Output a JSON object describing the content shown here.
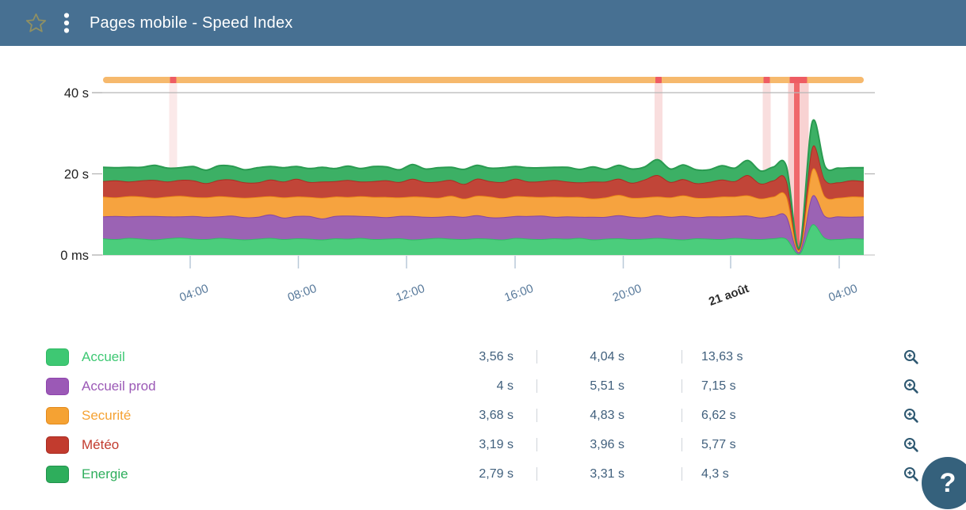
{
  "header": {
    "title": "Pages mobile - Speed Index"
  },
  "chart_data": {
    "type": "area",
    "stacked": true,
    "unit": "seconds",
    "ylim": [
      0,
      42
    ],
    "grid": "horizontal-40s-only",
    "y_ticks": [
      {
        "v": 0,
        "label": "0 ms"
      },
      {
        "v": 20,
        "label": "20 s"
      },
      {
        "v": 40,
        "label": "40 s"
      }
    ],
    "x_ticks": [
      {
        "pos": 0.1146,
        "label": "04:00"
      },
      {
        "pos": 0.2568,
        "label": "08:00"
      },
      {
        "pos": 0.399,
        "label": "12:00"
      },
      {
        "pos": 0.5417,
        "label": "16:00"
      },
      {
        "pos": 0.6839,
        "label": "20:00"
      },
      {
        "pos": 0.825,
        "label": "21 août",
        "emphasis": true
      },
      {
        "pos": 0.9677,
        "label": "04:00"
      }
    ],
    "series": [
      {
        "name": "Accueil",
        "fill": "#4bcd7c",
        "stroke": "#2fbd64",
        "values": [
          4.1,
          3.9,
          4.2,
          4.0,
          3.8,
          4.1,
          4.3,
          4.0,
          3.9,
          4.2,
          4.0,
          3.8,
          4.0,
          4.2,
          3.9,
          4.1,
          4.0,
          3.8,
          4.1,
          4.0,
          4.2,
          3.9,
          4.0,
          4.1,
          3.8,
          4.0,
          4.2,
          4.0,
          3.9,
          4.1,
          4.0,
          3.8,
          4.2,
          4.0,
          3.9,
          4.1,
          4.0,
          4.2,
          3.8,
          4.0,
          4.1,
          3.9,
          4.0,
          4.2,
          4.0,
          3.8,
          4.1,
          4.0,
          3.9,
          4.2,
          4.0,
          3.9,
          4.1,
          4.0,
          0.3,
          7.5,
          4.2,
          3.9,
          4.1,
          4.0
        ]
      },
      {
        "name": "Accueil prod",
        "fill": "#9b63b4",
        "stroke": "#8646a4",
        "values": [
          5.4,
          5.7,
          5.3,
          5.6,
          5.8,
          5.4,
          5.2,
          5.6,
          5.5,
          5.3,
          5.7,
          5.5,
          5.4,
          5.8,
          5.3,
          5.5,
          5.6,
          5.2,
          5.5,
          5.7,
          5.4,
          5.6,
          5.3,
          5.5,
          5.8,
          5.4,
          5.2,
          5.6,
          5.5,
          5.7,
          5.3,
          5.5,
          5.4,
          5.6,
          5.8,
          5.3,
          5.5,
          5.2,
          5.6,
          5.4,
          5.7,
          5.5,
          5.3,
          5.6,
          5.4,
          5.8,
          5.2,
          5.5,
          5.6,
          5.4,
          5.7,
          5.3,
          5.5,
          5.6,
          0.4,
          7.0,
          5.4,
          5.6,
          5.3,
          5.5
        ]
      },
      {
        "name": "Securité",
        "fill": "#f6a33f",
        "stroke": "#ee8d17",
        "values": [
          4.9,
          4.6,
          5.0,
          4.8,
          4.5,
          4.9,
          5.1,
          4.7,
          4.8,
          5.0,
          4.6,
          4.8,
          4.9,
          4.5,
          5.0,
          4.8,
          4.7,
          5.1,
          4.8,
          4.6,
          4.9,
          4.8,
          5.0,
          4.6,
          4.8,
          4.9,
          4.7,
          5.0,
          4.5,
          4.8,
          5.1,
          4.7,
          4.9,
          4.8,
          4.6,
          5.0,
          4.8,
          4.9,
          4.5,
          4.8,
          5.0,
          4.7,
          4.9,
          4.6,
          4.8,
          5.1,
          4.8,
          4.6,
          4.9,
          4.8,
          5.0,
          4.7,
          4.8,
          4.9,
          0.5,
          6.5,
          4.8,
          4.6,
          5.0,
          4.8
        ]
      },
      {
        "name": "Météo",
        "fill": "#c14538",
        "stroke": "#ab2d22",
        "values": [
          3.8,
          4.2,
          3.6,
          4.0,
          4.4,
          3.7,
          3.9,
          4.1,
          3.5,
          4.0,
          4.3,
          3.8,
          3.6,
          4.1,
          3.9,
          4.4,
          3.7,
          4.0,
          3.8,
          4.2,
          3.6,
          3.9,
          4.1,
          3.8,
          4.4,
          3.7,
          4.0,
          3.9,
          3.6,
          4.2,
          3.8,
          4.0,
          4.3,
          3.7,
          3.9,
          4.1,
          3.8,
          3.6,
          4.2,
          3.9,
          4.0,
          3.7,
          4.4,
          5.3,
          3.8,
          4.0,
          3.6,
          3.9,
          4.2,
          3.8,
          5.0,
          3.7,
          4.0,
          3.9,
          0.4,
          5.5,
          4.1,
          3.8,
          4.0,
          3.9
        ]
      },
      {
        "name": "Energie",
        "fill": "#3cb065",
        "stroke": "#2a9b51",
        "values": [
          3.4,
          3.1,
          3.5,
          3.2,
          3.6,
          3.3,
          3.0,
          3.4,
          3.2,
          3.5,
          3.3,
          3.1,
          3.6,
          3.2,
          3.4,
          3.0,
          3.3,
          3.5,
          3.1,
          3.4,
          3.2,
          3.6,
          3.3,
          3.0,
          3.5,
          3.2,
          3.4,
          3.1,
          3.6,
          3.3,
          3.2,
          3.5,
          3.0,
          3.4,
          3.3,
          3.1,
          3.5,
          3.2,
          3.6,
          3.0,
          3.3,
          3.4,
          3.1,
          3.8,
          3.2,
          3.5,
          3.3,
          3.0,
          3.4,
          3.2,
          3.6,
          3.1,
          3.3,
          3.4,
          0.2,
          6.2,
          3.3,
          3.5,
          3.1,
          3.3
        ]
      }
    ],
    "incident_bar": {
      "color": "#f6b96d",
      "segment_color": "#ee5c63",
      "segments": [
        {
          "pos": 0.0922,
          "w": 8
        },
        {
          "pos": 0.7302,
          "w": 8
        },
        {
          "pos": 0.8724,
          "w": 8
        },
        {
          "pos": 0.9141,
          "w": 22
        }
      ]
    },
    "incident_stripes": [
      {
        "pos": 0.0922,
        "w": 10,
        "color": "#fbe9e9"
      },
      {
        "pos": 0.7302,
        "w": 10,
        "color": "#f9dede"
      },
      {
        "pos": 0.8724,
        "w": 10,
        "color": "#f9dede"
      },
      {
        "pos": 0.9141,
        "w": 26,
        "color": "#f8d2d2"
      },
      {
        "pos": 0.912,
        "w": 7,
        "color": "#ef686b"
      }
    ]
  },
  "legend": {
    "rows": [
      {
        "name": "Accueil",
        "color": "#3ec873",
        "border": "#2eb863",
        "values": [
          "3,56 s",
          "4,04 s",
          "13,63 s"
        ]
      },
      {
        "name": "Accueil prod",
        "color": "#9b59b6",
        "border": "#8e44ad",
        "values": [
          "4 s",
          "5,51 s",
          "7,15 s"
        ]
      },
      {
        "name": "Securité",
        "color": "#f5a233",
        "border": "#e2891b",
        "values": [
          "3,68 s",
          "4,83 s",
          "6,62 s"
        ]
      },
      {
        "name": "Météo",
        "color": "#c23b2e",
        "border": "#a82b20",
        "values": [
          "3,19 s",
          "3,96 s",
          "5,77 s"
        ]
      },
      {
        "name": "Energie",
        "color": "#2eae5c",
        "border": "#21914c",
        "values": [
          "2,79 s",
          "3,31 s",
          "4,3 s"
        ]
      }
    ]
  },
  "help_button": {
    "label": "?"
  }
}
